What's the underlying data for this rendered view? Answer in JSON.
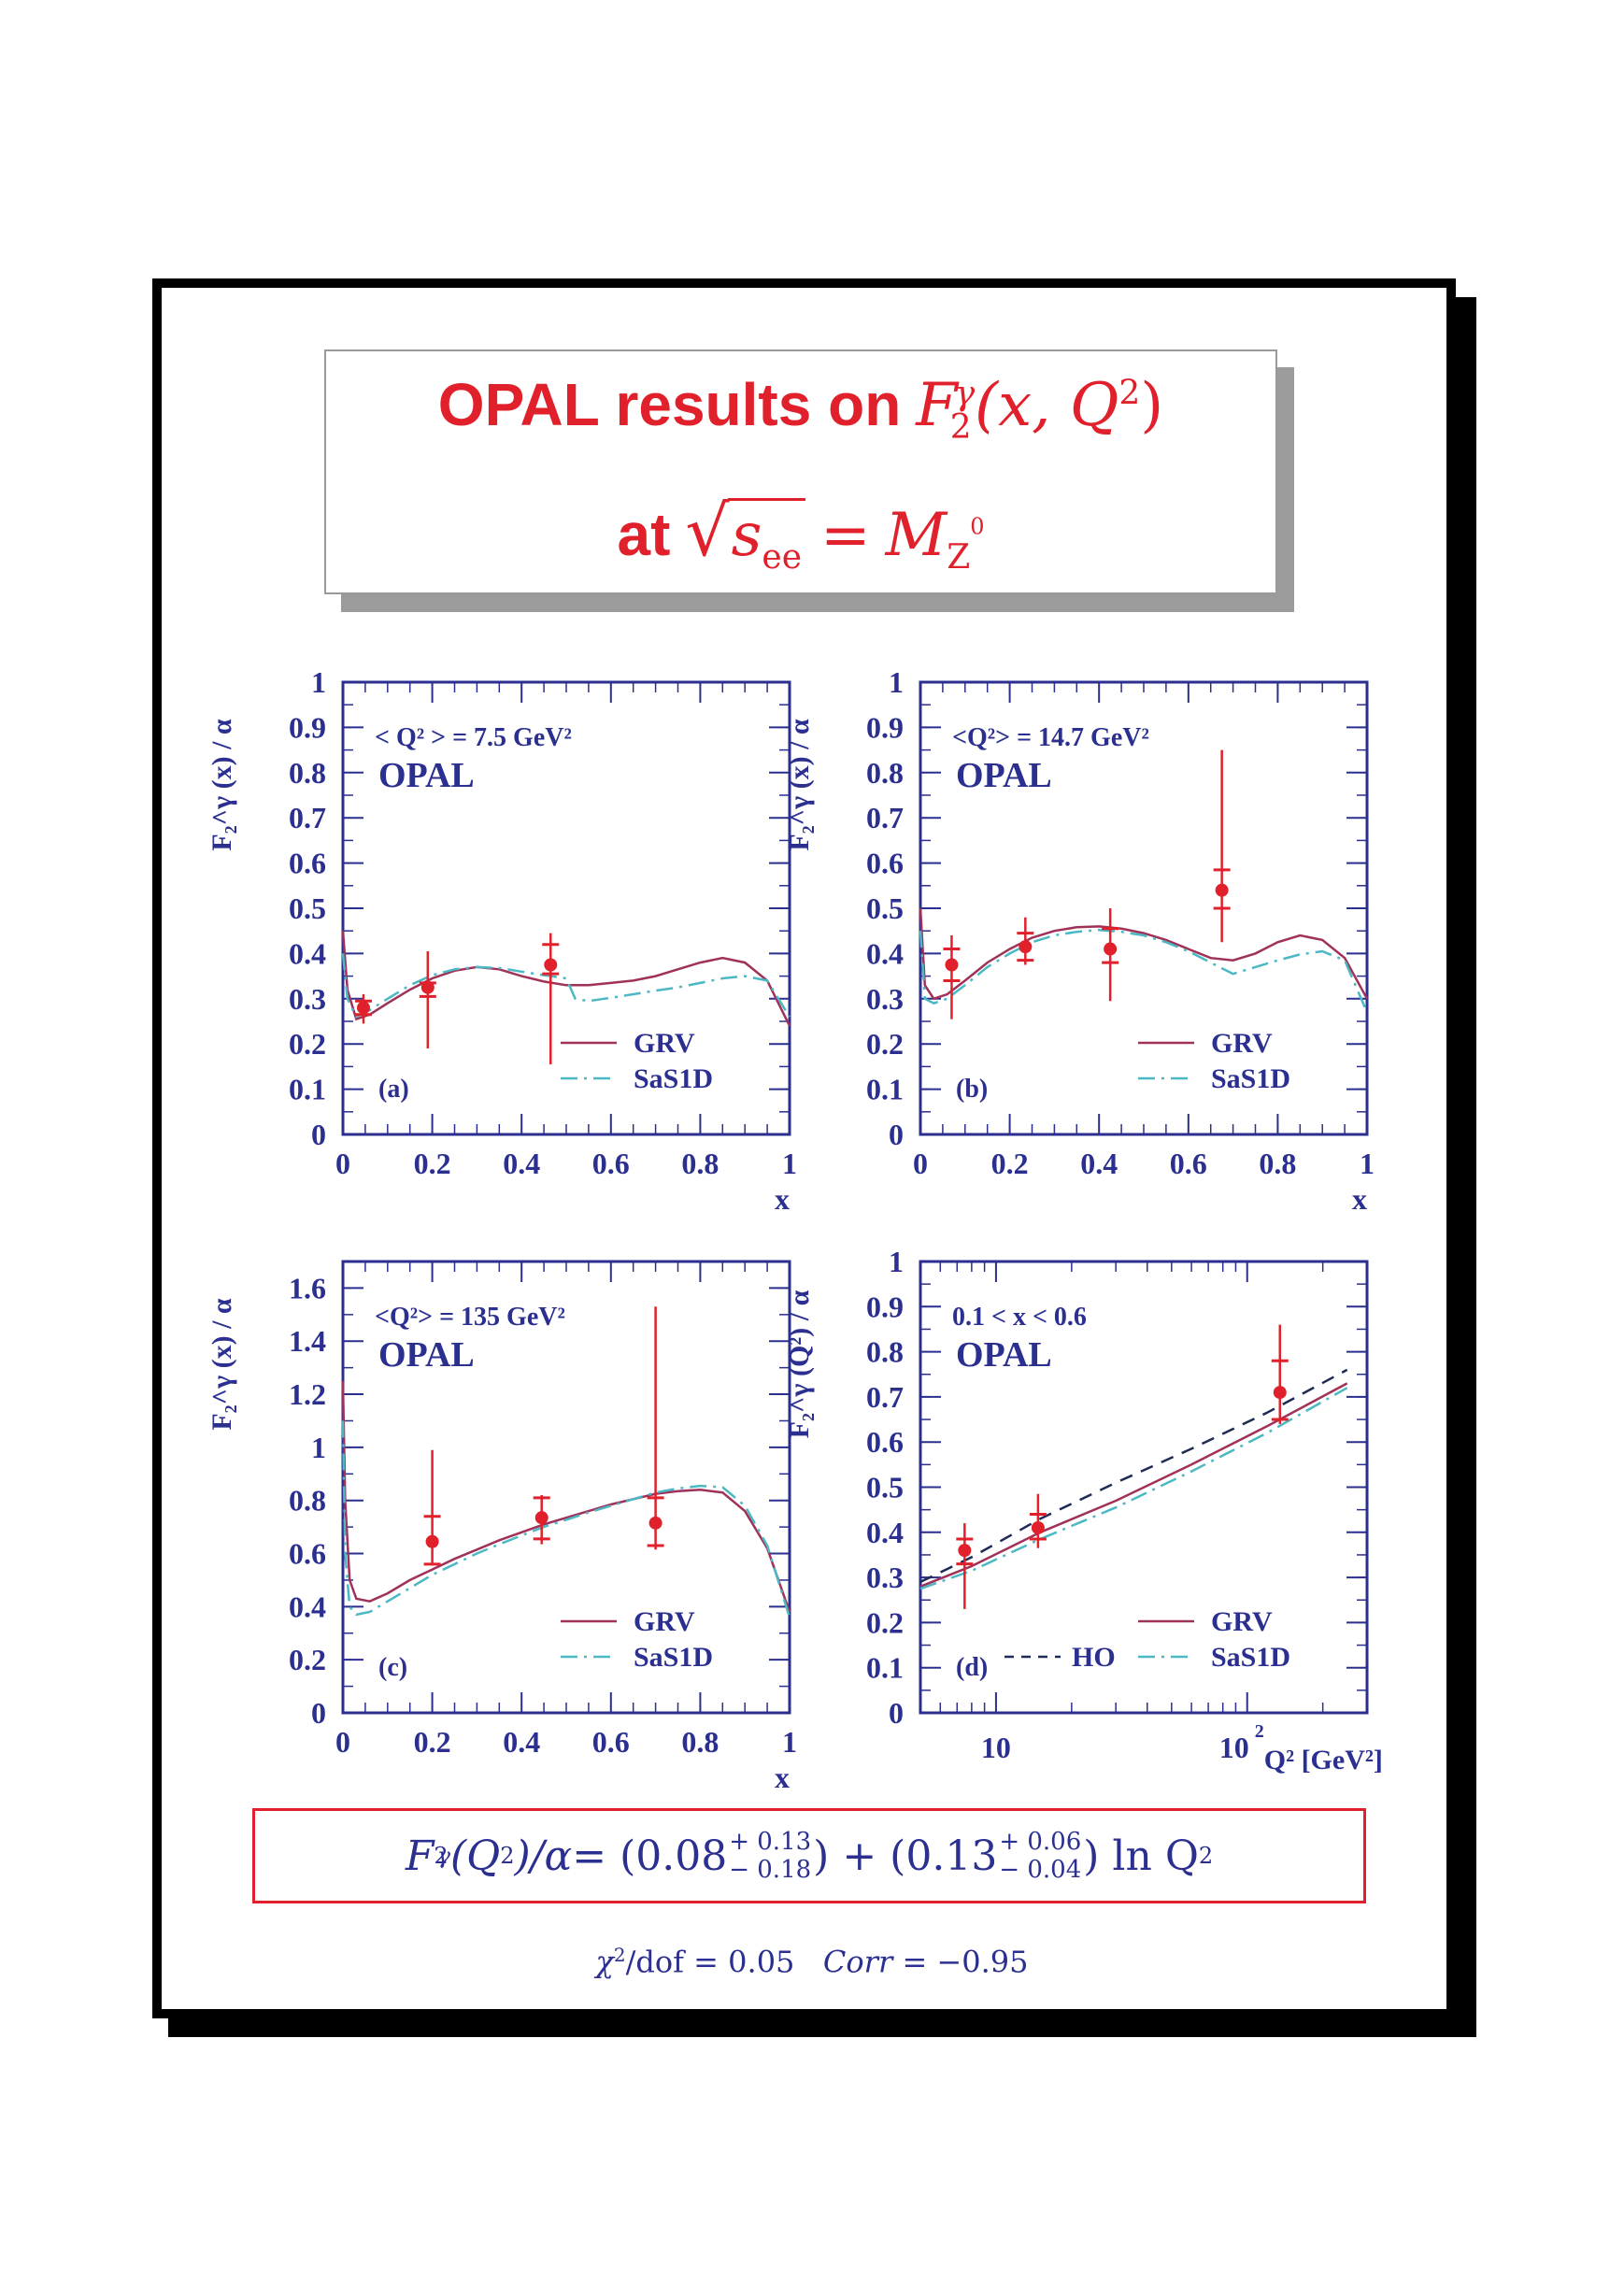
{
  "title": {
    "line1_text": "OPAL results on",
    "line1_math": "F",
    "line1_math_sub": "2",
    "line1_math_sup": "γ",
    "line1_math_args": "(x, Q",
    "line1_math_args_sup": "2",
    "line1_math_close": ")",
    "line2_text": "at",
    "line2_sqrt": "s",
    "line2_sqrt_sub": "ee",
    "line2_eq": "=",
    "line2_rhs": "M",
    "line2_rhs_sub": "Z",
    "line2_rhs_subsup": "0"
  },
  "colors": {
    "red": "#e0212b",
    "axis_blue": "#2b2f8f",
    "grv": "#a0325a",
    "sas1d": "#4bb8c4",
    "ho": "#1f2a55",
    "frame": "#000000"
  },
  "chart_data": [
    {
      "panel": "a",
      "type": "line",
      "annotation": "< Q² > = 7.5 GeV²",
      "experiment": "OPAL",
      "panel_label": "(a)",
      "xlabel": "x",
      "ylabel": "F₂^γ (x) / α",
      "xlim": [
        0,
        1
      ],
      "ylim": [
        0,
        1
      ],
      "xticks": [
        "0",
        "0.2",
        "0.4",
        "0.6",
        "0.8",
        "1"
      ],
      "yticks": [
        "0",
        "0.1",
        "0.2",
        "0.3",
        "0.4",
        "0.5",
        "0.6",
        "0.7",
        "0.8",
        "0.9",
        "1"
      ],
      "series": [
        {
          "name": "GRV",
          "style": "solid",
          "x": [
            0,
            0.01,
            0.03,
            0.06,
            0.1,
            0.15,
            0.2,
            0.25,
            0.3,
            0.35,
            0.4,
            0.45,
            0.5,
            0.55,
            0.6,
            0.65,
            0.7,
            0.75,
            0.8,
            0.85,
            0.9,
            0.95,
            1.0
          ],
          "y": [
            0.45,
            0.32,
            0.255,
            0.265,
            0.29,
            0.32,
            0.345,
            0.362,
            0.37,
            0.365,
            0.35,
            0.338,
            0.33,
            0.33,
            0.335,
            0.34,
            0.35,
            0.365,
            0.38,
            0.39,
            0.38,
            0.34,
            0.24
          ]
        },
        {
          "name": "SaS1D",
          "style": "dashdot",
          "x": [
            0,
            0.01,
            0.03,
            0.06,
            0.1,
            0.15,
            0.2,
            0.25,
            0.3,
            0.35,
            0.4,
            0.45,
            0.5,
            0.52,
            0.55,
            0.6,
            0.65,
            0.7,
            0.75,
            0.8,
            0.85,
            0.9,
            0.95,
            1.0
          ],
          "y": [
            0.4,
            0.3,
            0.26,
            0.275,
            0.3,
            0.33,
            0.352,
            0.365,
            0.37,
            0.368,
            0.36,
            0.352,
            0.345,
            0.3,
            0.295,
            0.302,
            0.31,
            0.318,
            0.325,
            0.335,
            0.345,
            0.35,
            0.34,
            0.26
          ]
        }
      ],
      "points": [
        {
          "x": 0.046,
          "y": 0.28,
          "stat": [
            0.265,
            0.295
          ],
          "tot": [
            0.245,
            0.31
          ]
        },
        {
          "x": 0.19,
          "y": 0.325,
          "stat": [
            0.305,
            0.335
          ],
          "tot": [
            0.19,
            0.405
          ]
        },
        {
          "x": 0.465,
          "y": 0.375,
          "stat": [
            0.355,
            0.42
          ],
          "tot": [
            0.155,
            0.445
          ]
        }
      ]
    },
    {
      "panel": "b",
      "type": "line",
      "annotation": "<Q²> = 14.7 GeV²",
      "experiment": "OPAL",
      "panel_label": "(b)",
      "xlabel": "x",
      "ylabel": "F₂^γ (x) / α",
      "xlim": [
        0,
        1
      ],
      "ylim": [
        0,
        1
      ],
      "xticks": [
        "0",
        "0.2",
        "0.4",
        "0.6",
        "0.8",
        "1"
      ],
      "yticks": [
        "0",
        "0.1",
        "0.2",
        "0.3",
        "0.4",
        "0.5",
        "0.6",
        "0.7",
        "0.8",
        "0.9",
        "1"
      ],
      "series": [
        {
          "name": "GRV",
          "style": "solid",
          "x": [
            0,
            0.01,
            0.03,
            0.06,
            0.1,
            0.15,
            0.2,
            0.25,
            0.3,
            0.35,
            0.4,
            0.45,
            0.5,
            0.55,
            0.6,
            0.65,
            0.7,
            0.75,
            0.8,
            0.85,
            0.9,
            0.95,
            1.0
          ],
          "y": [
            0.5,
            0.33,
            0.3,
            0.31,
            0.34,
            0.38,
            0.41,
            0.435,
            0.45,
            0.458,
            0.46,
            0.455,
            0.445,
            0.43,
            0.41,
            0.39,
            0.385,
            0.4,
            0.425,
            0.44,
            0.43,
            0.39,
            0.3
          ]
        },
        {
          "name": "SaS1D",
          "style": "dashdot",
          "x": [
            0,
            0.01,
            0.03,
            0.06,
            0.1,
            0.15,
            0.2,
            0.25,
            0.3,
            0.35,
            0.4,
            0.45,
            0.5,
            0.55,
            0.6,
            0.65,
            0.7,
            0.75,
            0.8,
            0.85,
            0.9,
            0.95,
            1.0
          ],
          "y": [
            0.45,
            0.3,
            0.29,
            0.3,
            0.33,
            0.37,
            0.4,
            0.425,
            0.44,
            0.448,
            0.452,
            0.448,
            0.44,
            0.425,
            0.405,
            0.38,
            0.355,
            0.37,
            0.385,
            0.398,
            0.405,
            0.385,
            0.27
          ]
        }
      ],
      "points": [
        {
          "x": 0.07,
          "y": 0.375,
          "stat": [
            0.34,
            0.41
          ],
          "tot": [
            0.255,
            0.44
          ]
        },
        {
          "x": 0.235,
          "y": 0.415,
          "stat": [
            0.385,
            0.445
          ],
          "tot": [
            0.375,
            0.48
          ]
        },
        {
          "x": 0.425,
          "y": 0.41,
          "stat": [
            0.38,
            0.455
          ],
          "tot": [
            0.295,
            0.5
          ]
        },
        {
          "x": 0.675,
          "y": 0.54,
          "stat": [
            0.5,
            0.585
          ],
          "tot": [
            0.425,
            0.85
          ]
        }
      ]
    },
    {
      "panel": "c",
      "type": "line",
      "annotation": "<Q²> = 135 GeV²",
      "experiment": "OPAL",
      "panel_label": "(c)",
      "xlabel": "x",
      "ylabel": "F₂^γ (x) / α",
      "xlim": [
        0,
        1
      ],
      "ylim": [
        0,
        1.7
      ],
      "xticks": [
        "0",
        "0.2",
        "0.4",
        "0.6",
        "0.8",
        "1"
      ],
      "yticks": [
        "0",
        "0.2",
        "0.4",
        "0.6",
        "0.8",
        "1",
        "1.2",
        "1.4",
        "1.6"
      ],
      "series": [
        {
          "name": "GRV",
          "style": "solid",
          "x": [
            0,
            0.005,
            0.015,
            0.03,
            0.06,
            0.1,
            0.15,
            0.2,
            0.25,
            0.3,
            0.35,
            0.4,
            0.45,
            0.5,
            0.55,
            0.6,
            0.65,
            0.7,
            0.75,
            0.8,
            0.85,
            0.9,
            0.95,
            1.0
          ],
          "y": [
            1.25,
            0.8,
            0.5,
            0.43,
            0.42,
            0.45,
            0.5,
            0.54,
            0.58,
            0.615,
            0.65,
            0.68,
            0.71,
            0.735,
            0.76,
            0.785,
            0.805,
            0.825,
            0.835,
            0.84,
            0.83,
            0.76,
            0.62,
            0.38
          ]
        },
        {
          "name": "SaS1D",
          "style": "dashdot",
          "x": [
            0,
            0.005,
            0.015,
            0.03,
            0.06,
            0.1,
            0.15,
            0.2,
            0.25,
            0.3,
            0.35,
            0.4,
            0.45,
            0.5,
            0.55,
            0.6,
            0.65,
            0.7,
            0.75,
            0.8,
            0.85,
            0.9,
            0.95,
            1.0
          ],
          "y": [
            1.1,
            0.6,
            0.4,
            0.37,
            0.38,
            0.42,
            0.47,
            0.52,
            0.56,
            0.6,
            0.635,
            0.668,
            0.7,
            0.727,
            0.755,
            0.78,
            0.805,
            0.83,
            0.845,
            0.855,
            0.85,
            0.78,
            0.63,
            0.36
          ]
        }
      ],
      "points": [
        {
          "x": 0.2,
          "y": 0.645,
          "stat": [
            0.56,
            0.74
          ],
          "tot": [
            0.555,
            0.99
          ]
        },
        {
          "x": 0.445,
          "y": 0.735,
          "stat": [
            0.655,
            0.81
          ],
          "tot": [
            0.635,
            0.82
          ]
        },
        {
          "x": 0.7,
          "y": 0.715,
          "stat": [
            0.63,
            0.81
          ],
          "tot": [
            0.615,
            1.53
          ]
        }
      ]
    },
    {
      "panel": "d",
      "type": "line",
      "annotation": "0.1 < x < 0.6",
      "experiment": "OPAL",
      "panel_label": "(d)",
      "xlabel": "Q² [GeV²]",
      "ylabel": "F₂^γ (Q²) / α",
      "xscale": "log",
      "xlim": [
        5,
        300
      ],
      "ylim": [
        0,
        1
      ],
      "xticks": [
        "10",
        "10²"
      ],
      "yticks": [
        "0",
        "0.1",
        "0.2",
        "0.3",
        "0.4",
        "0.5",
        "0.6",
        "0.7",
        "0.8",
        "0.9",
        "1"
      ],
      "series": [
        {
          "name": "GRV",
          "style": "solid",
          "x": [
            5,
            8,
            15,
            30,
            60,
            120,
            250
          ],
          "y": [
            0.28,
            0.325,
            0.4,
            0.47,
            0.55,
            0.635,
            0.73
          ]
        },
        {
          "name": "SaS1D",
          "style": "dashdot",
          "x": [
            5,
            8,
            15,
            30,
            60,
            120,
            250
          ],
          "y": [
            0.275,
            0.315,
            0.385,
            0.455,
            0.535,
            0.62,
            0.72
          ]
        },
        {
          "name": "HO",
          "style": "dashed",
          "x": [
            5,
            8,
            15,
            30,
            60,
            120,
            250
          ],
          "y": [
            0.29,
            0.345,
            0.43,
            0.51,
            0.585,
            0.665,
            0.76
          ]
        }
      ],
      "points": [
        {
          "x": 7.5,
          "y": 0.36,
          "stat": [
            0.33,
            0.385
          ],
          "tot": [
            0.23,
            0.42
          ]
        },
        {
          "x": 14.7,
          "y": 0.41,
          "stat": [
            0.385,
            0.44
          ],
          "tot": [
            0.365,
            0.485
          ]
        },
        {
          "x": 135,
          "y": 0.71,
          "stat": [
            0.65,
            0.78
          ],
          "tot": [
            0.64,
            0.86
          ]
        }
      ]
    }
  ],
  "legend": {
    "grv": "GRV",
    "sas1d": "SaS1D",
    "ho": "HO"
  },
  "formula": {
    "lhs": "F",
    "lhs_sub": "2",
    "lhs_sup": "γ",
    "lhs_args": "(Q",
    "lhs_args_sup": "2",
    "lhs_close": ")/α",
    "eq": " = (0.08",
    "c1_up": "+ 0.13",
    "c1_down": "− 0.18",
    "mid": ") + (0.13",
    "c2_up": "+ 0.06",
    "c2_down": "− 0.04",
    "tail": ") ln Q",
    "tail_sup": "2"
  },
  "fit_quality": {
    "chi": "χ",
    "chi_sup": "2",
    "chi_rest": "/dof = 0.05",
    "corr_label": "Corr",
    "corr_rest": " = −0.95"
  }
}
